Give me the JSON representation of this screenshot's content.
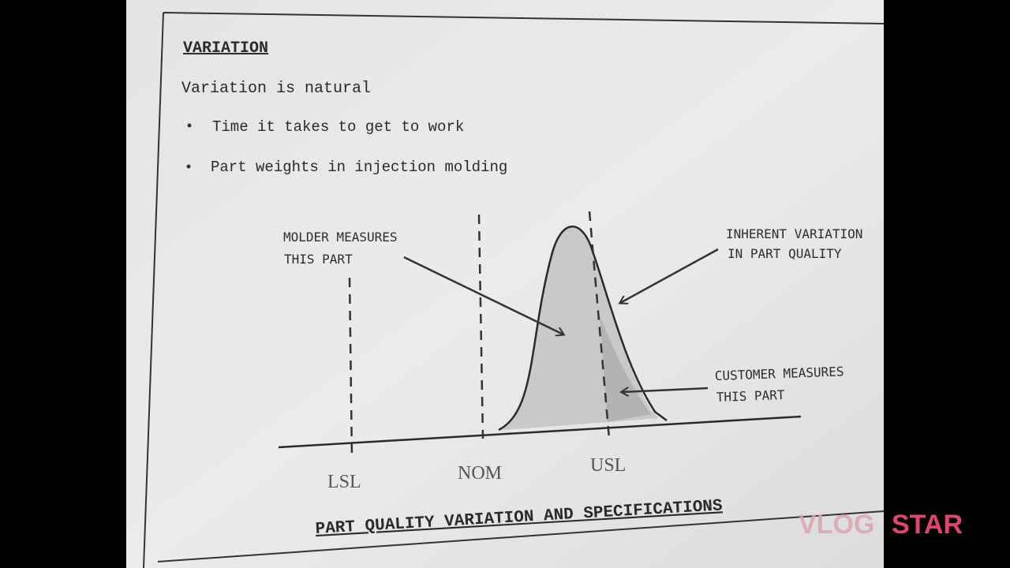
{
  "header": {
    "title": "VARIATION"
  },
  "body": {
    "intro": "Variation is natural",
    "bullets": [
      "Time it takes to get to work",
      "Part weights in injection molding"
    ]
  },
  "diagram": {
    "molder_label": [
      "MOLDER MEASURES",
      "THIS PART"
    ],
    "inherent_label": [
      "INHERENT VARIATION",
      "IN PART QUALITY"
    ],
    "customer_label": [
      "CUSTOMER MEASURES",
      "THIS PART"
    ],
    "axis_labels": [
      "LSL",
      "NOM",
      "USL"
    ],
    "caption": "PART QUALITY VARIATION AND SPECIFICATIONS"
  },
  "watermark": [
    "VLOG",
    "STAR"
  ]
}
